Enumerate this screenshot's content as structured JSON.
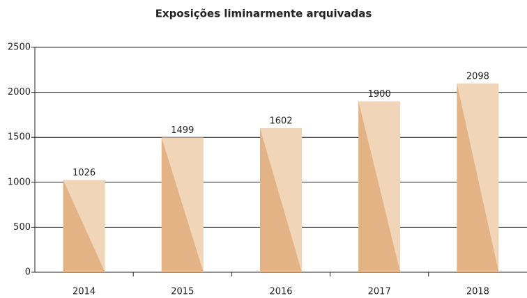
{
  "chart_data": {
    "type": "bar",
    "title": "Exposições liminarmente arquivadas",
    "categories": [
      "2014",
      "2015",
      "2016",
      "2017",
      "2018"
    ],
    "values": [
      1026,
      1499,
      1602,
      1900,
      2098
    ],
    "colors": [
      "#f0d5b8",
      "#e3b385"
    ],
    "ylim": [
      0,
      2500
    ],
    "yticks": [
      0,
      500,
      1000,
      1500,
      2000,
      2500
    ],
    "grid": true
  }
}
